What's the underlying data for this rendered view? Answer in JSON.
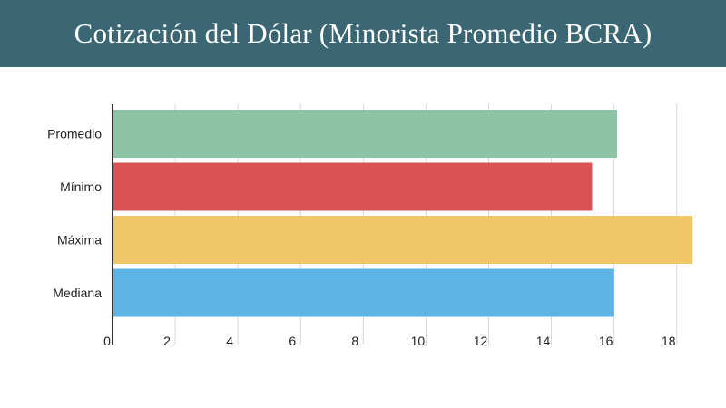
{
  "header": {
    "title": "Cotización del Dólar (Minorista Promedio BCRA)"
  },
  "chart_data": {
    "type": "bar",
    "orientation": "horizontal",
    "categories": [
      "Promedio",
      "Mínimo",
      "Máxima",
      "Mediana"
    ],
    "values": [
      16.1,
      15.3,
      18.5,
      16.0
    ],
    "colors": [
      "#8ec4a6",
      "#db5254",
      "#efc766",
      "#5db3e4"
    ],
    "xlim": [
      0,
      18.5
    ],
    "xticks": [
      0,
      2,
      4,
      6,
      8,
      10,
      12,
      14,
      16,
      18
    ],
    "grid": true,
    "legend": "none"
  }
}
